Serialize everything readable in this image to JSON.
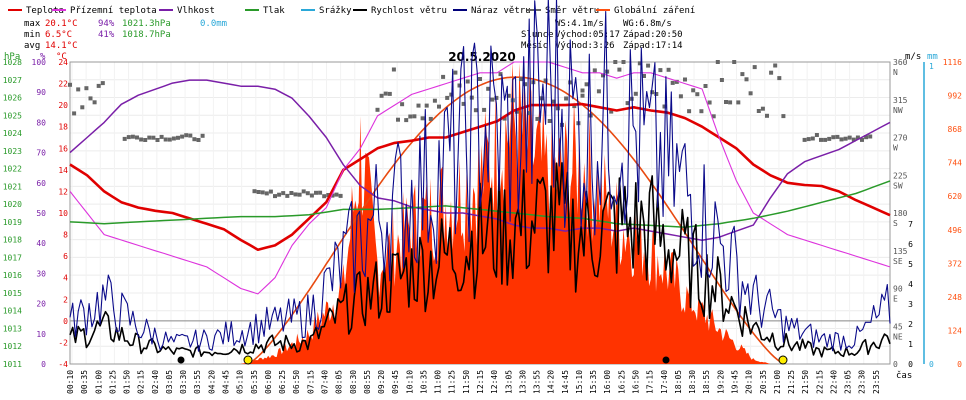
{
  "legend": [
    {
      "label": "Teplota",
      "color": "#e00000"
    },
    {
      "label": "Přízemní teplota",
      "color": "#dd33dd"
    },
    {
      "label": "Vlhkost",
      "color": "#7a1fa8"
    },
    {
      "label": "Tlak",
      "color": "#2a9a2a"
    },
    {
      "label": "Srážky",
      "color": "#2aa8d8"
    },
    {
      "label": "Rychlost větru",
      "color": "#000000"
    },
    {
      "label": "Náraz větru",
      "color": "#00007a"
    },
    {
      "label": "Směr větru",
      "color": "#666666"
    },
    {
      "label": "Globální záření",
      "color": "#ff5010"
    }
  ],
  "stats": {
    "max_label": "max",
    "max_temp": "20.1°C",
    "max_hum": "94%",
    "max_pres": "1021.3hPa",
    "max_rain": "0.0mm",
    "min_label": "min",
    "min_temp": "6.5°C",
    "min_hum": "41%",
    "min_pres": "1018.7hPa",
    "avg_label": "avg",
    "avg_temp": "14.1°C"
  },
  "wind_info": {
    "ws": "WS:4.1m/s",
    "wg": "WG:6.8m/s"
  },
  "sun_info": {
    "label": "Slunce",
    "rise": "Východ:05:17",
    "set": "Západ:20:50"
  },
  "moon_info": {
    "label": "Měsíc",
    "rise": "Východ:3:26",
    "set": "Západ:17:14"
  },
  "chart_data": {
    "type": "line",
    "title": "20.5.2020",
    "x_axis_label": "čas",
    "x_ticks": [
      "00:10",
      "00:35",
      "01:00",
      "01:25",
      "01:50",
      "02:15",
      "02:40",
      "03:05",
      "03:30",
      "03:55",
      "04:20",
      "04:45",
      "05:10",
      "05:35",
      "06:00",
      "06:25",
      "06:50",
      "07:15",
      "07:40",
      "08:05",
      "08:30",
      "08:55",
      "09:20",
      "09:45",
      "10:10",
      "10:35",
      "11:00",
      "11:25",
      "11:50",
      "12:15",
      "12:40",
      "13:05",
      "13:30",
      "13:55",
      "14:20",
      "14:45",
      "15:10",
      "15:35",
      "16:00",
      "16:25",
      "16:50",
      "17:15",
      "17:40",
      "18:05",
      "18:30",
      "18:55",
      "19:20",
      "19:45",
      "20:10",
      "20:35",
      "21:00",
      "21:25",
      "21:50",
      "22:15",
      "22:40",
      "23:05",
      "23:30",
      "23:55"
    ],
    "axes": {
      "pressure_hpa": {
        "label": "hPa",
        "ticks": [
          "1028",
          "1027",
          "1026",
          "1025",
          "1024",
          "1023",
          "1022",
          "1021",
          "1020",
          "1019",
          "1018",
          "1017",
          "1016",
          "1015",
          "1014",
          "1013",
          "1012",
          "1011"
        ],
        "range": [
          1011,
          1028
        ]
      },
      "humidity_pct": {
        "label": "%",
        "ticks": [
          "100",
          "90",
          "80",
          "70",
          "60",
          "50",
          "40",
          "30",
          "20",
          "10",
          "0"
        ],
        "range": [
          0,
          100
        ]
      },
      "temperature_c": {
        "label": "°C",
        "ticks": [
          "24",
          "22",
          "20",
          "18",
          "16",
          "14",
          "12",
          "10",
          "8",
          "6",
          "4",
          "2",
          "0",
          "-2",
          "-4"
        ],
        "range": [
          -4,
          24
        ]
      },
      "wind_ms": {
        "label": "m/s",
        "ticks": [
          "7",
          "6",
          "5",
          "4",
          "3",
          "2",
          "1",
          "0"
        ],
        "range": [
          0,
          7
        ]
      },
      "rain_mm": {
        "label": "mm",
        "ticks": [
          "1",
          "0"
        ],
        "range": [
          0,
          1
        ]
      },
      "direction_deg": {
        "ticks": [
          "360",
          "315",
          "270",
          "225",
          "180",
          "135",
          "90",
          "45",
          "0"
        ],
        "dir_labels": [
          "N",
          "NW",
          "W",
          "SW",
          "S",
          "SE",
          "E",
          "NE"
        ],
        "range": [
          0,
          360
        ]
      },
      "radiation_wm2": {
        "ticks": [
          "1116",
          "992",
          "868",
          "744",
          "620",
          "496",
          "372",
          "248",
          "124",
          "0"
        ],
        "range": [
          0,
          1116
        ]
      }
    },
    "series": [
      {
        "name": "Teplota",
        "unit": "°C",
        "x_hours": [
          0,
          0.5,
          1,
          1.5,
          2,
          2.5,
          3,
          3.5,
          4,
          4.5,
          5,
          5.5,
          6,
          6.5,
          7,
          7.5,
          8,
          8.5,
          9,
          9.5,
          10,
          10.5,
          11,
          11.5,
          12,
          12.5,
          13,
          13.5,
          14,
          14.5,
          15,
          15.5,
          16,
          16.5,
          17,
          17.5,
          18,
          18.5,
          19,
          19.5,
          20,
          20.5,
          21,
          21.5,
          22,
          22.5,
          23,
          23.5,
          24
        ],
        "values": [
          14.5,
          13.5,
          12,
          11,
          10.5,
          10.2,
          10,
          9.5,
          9,
          8.5,
          7.5,
          6.6,
          7,
          8,
          9.5,
          11,
          14,
          15,
          16,
          16.5,
          16.7,
          17,
          17,
          17.5,
          18,
          18.5,
          19.5,
          20,
          20,
          20,
          20.1,
          19.8,
          19.5,
          19.8,
          19.5,
          19.3,
          18.8,
          18,
          17,
          16,
          14.5,
          13.5,
          12.8,
          12.6,
          12.5,
          12,
          11.2,
          10.5,
          9.8
        ]
      },
      {
        "name": "Přízemní teplota",
        "unit": "°C",
        "x_hours": [
          0,
          0.5,
          1,
          1.5,
          2,
          2.5,
          3,
          3.5,
          4,
          4.5,
          5,
          5.5,
          6,
          6.5,
          7,
          7.5,
          8,
          8.5,
          9,
          9.5,
          10,
          10.5,
          11,
          11.5,
          12,
          12.5,
          13,
          13.5,
          14,
          14.5,
          15,
          15.5,
          16,
          16.5,
          17,
          17.5,
          18,
          18.5,
          19,
          19.5,
          20,
          20.5,
          21,
          21.5,
          22,
          22.5,
          23,
          23.5,
          24
        ],
        "values": [
          12,
          10,
          8,
          7.5,
          7,
          6.5,
          6,
          5.5,
          5,
          4,
          3,
          2.5,
          4,
          7,
          9,
          10.5,
          14,
          16,
          19,
          20,
          21,
          21.5,
          22,
          22.5,
          23,
          23,
          24,
          24,
          24,
          23.5,
          23,
          23,
          22.5,
          23,
          23,
          22.5,
          22,
          21.5,
          17,
          13,
          10,
          9,
          8,
          7.5,
          7,
          6.5,
          6,
          5.5,
          5
        ]
      },
      {
        "name": "Vlhkost",
        "unit": "%",
        "x_hours": [
          0,
          0.5,
          1,
          1.5,
          2,
          2.5,
          3,
          3.5,
          4,
          4.5,
          5,
          5.5,
          6,
          6.5,
          7,
          7.5,
          8,
          8.5,
          9,
          9.5,
          10,
          10.5,
          11,
          11.5,
          12,
          12.5,
          13,
          13.5,
          14,
          14.5,
          15,
          15.5,
          16,
          16.5,
          17,
          17.5,
          18,
          18.5,
          19,
          19.5,
          20,
          20.5,
          21,
          21.5,
          22,
          22.5,
          23,
          23.5,
          24
        ],
        "values": [
          70,
          75,
          80,
          86,
          89,
          91,
          93,
          94,
          94,
          93,
          92,
          92,
          91,
          88,
          82,
          75,
          66,
          59,
          55,
          54,
          52,
          51,
          50,
          50,
          49,
          48,
          46,
          45,
          45,
          44,
          45,
          45,
          44,
          45,
          44,
          43,
          42,
          41,
          42,
          44,
          46,
          55,
          63,
          67,
          69,
          71,
          74,
          77,
          80
        ]
      },
      {
        "name": "Tlak",
        "unit": "hPa",
        "x_hours": [
          0,
          1,
          2,
          3,
          4,
          5,
          6,
          7,
          8,
          9,
          10,
          11,
          12,
          13,
          14,
          15,
          16,
          17,
          18,
          19,
          20,
          21,
          22,
          23,
          24
        ],
        "values": [
          1019.0,
          1018.9,
          1019.0,
          1019.1,
          1019.2,
          1019.3,
          1019.3,
          1019.4,
          1019.7,
          1019.7,
          1019.8,
          1019.9,
          1019.7,
          1019.5,
          1019.3,
          1019.2,
          1018.9,
          1018.8,
          1018.7,
          1018.9,
          1019.2,
          1019.6,
          1020.1,
          1020.6,
          1021.3
        ]
      },
      {
        "name": "Rychlost větru",
        "unit": "m/s",
        "x_hours": [
          0,
          1,
          2,
          3,
          4,
          5,
          6,
          7,
          8,
          9,
          10,
          11,
          12,
          13,
          14,
          15,
          16,
          17,
          18,
          19,
          20,
          21,
          22,
          23,
          24
        ],
        "values": [
          0.6,
          0.9,
          0.5,
          0.3,
          0.3,
          0.4,
          0.5,
          0.5,
          1.3,
          1.8,
          2.3,
          2.6,
          3.1,
          3.3,
          3.6,
          3.1,
          3.4,
          3.3,
          2.6,
          1.8,
          0.9,
          0.5,
          0.3,
          0.3,
          0.7
        ]
      },
      {
        "name": "Náraz větru",
        "unit": "m/s",
        "x_hours": [
          0,
          1,
          2,
          3,
          4,
          5,
          6,
          7,
          8,
          9,
          10,
          11,
          12,
          13,
          14,
          15,
          16,
          17,
          18,
          19,
          20,
          21,
          22,
          23,
          24
        ],
        "values": [
          1.0,
          1.6,
          0.9,
          0.5,
          0.6,
          0.8,
          1.0,
          1.2,
          2.5,
          3.6,
          4.1,
          4.8,
          5.8,
          5.5,
          6.8,
          5.6,
          6.1,
          5.2,
          4.3,
          3.0,
          1.6,
          0.9,
          0.6,
          0.6,
          1.4
        ]
      },
      {
        "name": "Globální záření",
        "unit": "W/m2",
        "x_hours": [
          5,
          6,
          7,
          8,
          8.5,
          9,
          10,
          11,
          12,
          12.5,
          13,
          14,
          15,
          16,
          17,
          18,
          19,
          20,
          20.5
        ],
        "values": [
          0,
          40,
          130,
          330,
          920,
          430,
          600,
          700,
          800,
          950,
          1060,
          800,
          870,
          620,
          500,
          300,
          150,
          20,
          0
        ]
      }
    ]
  }
}
